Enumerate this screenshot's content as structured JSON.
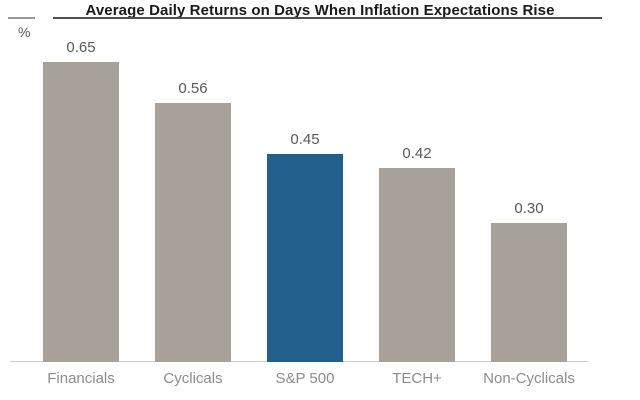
{
  "header": {
    "title": "Average Daily Returns on Days When Inflation Expectations Rise",
    "unit_label": "%"
  },
  "chart_data": {
    "type": "bar",
    "title": "Average Daily Returns on Days When Inflation Expectations Rise",
    "xlabel": "",
    "ylabel": "%",
    "categories": [
      "Financials",
      "Cyclicals",
      "S&P 500",
      "TECH+",
      "Non-Cyclicals"
    ],
    "values": [
      0.65,
      0.56,
      0.45,
      0.42,
      0.3
    ],
    "value_labels": [
      "0.65",
      "0.56",
      "0.45",
      "0.42",
      "0.30"
    ],
    "ylim": [
      0,
      0.78
    ],
    "grid": false,
    "legend_position": "none",
    "highlight_index": 2,
    "bar_color": "#a8a19a",
    "highlight_color": "#235f8d",
    "value_label_color": "#595959",
    "category_label_color": "#8c8c8c",
    "axis_line_color": "#cbcbcb"
  }
}
